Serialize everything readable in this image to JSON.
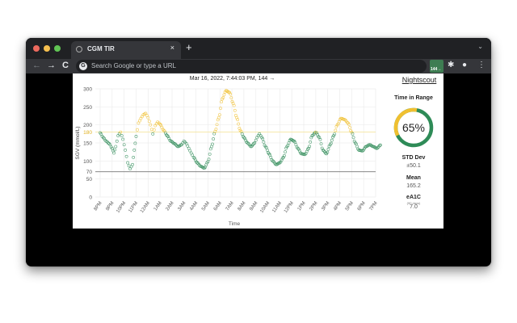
{
  "browser": {
    "tab": {
      "title": "CGM TIR",
      "close_icon": "×"
    },
    "new_tab_icon": "+",
    "tabstrip_chevron": "⌄",
    "nav": {
      "back": "←",
      "forward": "→",
      "reload": "C"
    },
    "omnibox": {
      "google_icon": "G",
      "placeholder": "Search Google or type a URL"
    },
    "extension_badge": "144→",
    "icons": {
      "extensions": "✱",
      "profile": "●",
      "menu": "⋮"
    },
    "traffic_lights": {
      "close": "#ed6a5e",
      "minimize": "#f5bf4f",
      "maximize": "#61c554"
    }
  },
  "page": {
    "chart_title": "Mar 16, 2022, 7:44:03 PM, 144 →",
    "sidebar": {
      "brand": "Nightscout",
      "tir_label": "Time in Range",
      "tir_value": "65%",
      "std_label": "STD Dev",
      "std_value": "±50.1",
      "mean_label": "Mean",
      "mean_value": "165.2",
      "ea1c_label": "eA1C",
      "ea1c_sub": "(90 days)",
      "ea1c_value": "7.0"
    },
    "colors": {
      "in_range": "#2e8b57",
      "high": "#f0c030",
      "target_line": "#f5e6a0",
      "low_line": "#777777"
    }
  },
  "chart_data": {
    "type": "scatter",
    "title": "Mar 16, 2022, 7:44:03 PM, 144 →",
    "xlabel": "Time",
    "ylabel": "SGV (mmol/L)",
    "ylim": [
      0,
      300
    ],
    "yticks": [
      "0",
      "50",
      "70",
      "100",
      "150",
      "180",
      "200",
      "250",
      "300"
    ],
    "xticks": [
      "8PM",
      "9PM",
      "10PM",
      "11PM",
      "12AM",
      "1AM",
      "2AM",
      "3AM",
      "4AM",
      "5AM",
      "6AM",
      "7AM",
      "8AM",
      "9AM",
      "10AM",
      "11AM",
      "12PM",
      "1PM",
      "2PM",
      "3PM",
      "4PM",
      "5PM",
      "6PM",
      "7PM"
    ],
    "reference_lines": {
      "high": 180,
      "low": 70
    },
    "grid": true,
    "series": [
      {
        "name": "SGV",
        "x_hours": [
          0,
          0.25,
          0.5,
          0.75,
          1.0,
          1.15,
          1.3,
          1.5,
          1.7,
          1.9,
          2.1,
          2.3,
          2.5,
          2.7,
          2.85,
          3.0,
          3.2,
          3.4,
          3.6,
          3.8,
          4.0,
          4.2,
          4.4,
          4.6,
          4.8,
          5.0,
          5.3,
          5.6,
          5.9,
          6.2,
          6.5,
          6.8,
          7.0,
          7.2,
          7.4,
          7.6,
          7.8,
          8.1,
          8.4,
          8.7,
          9.0,
          9.3,
          9.6,
          9.9,
          10.2,
          10.5,
          10.8,
          11.1,
          11.4,
          11.7,
          12.0,
          12.3,
          12.6,
          12.9,
          13.1,
          13.3,
          13.5,
          13.8,
          14.1,
          14.4,
          14.7,
          15.0,
          15.3,
          15.6,
          15.9,
          16.2,
          16.5,
          16.8,
          17.1,
          17.4,
          17.7,
          18.0,
          18.3,
          18.6,
          18.9,
          19.2,
          19.5,
          19.8,
          20.1,
          20.4,
          20.7,
          21.0,
          21.3,
          21.6,
          21.9,
          22.2,
          22.5,
          22.8,
          23.1,
          23.4
        ],
        "values": [
          178,
          165,
          155,
          148,
          135,
          122,
          140,
          170,
          180,
          160,
          130,
          95,
          78,
          90,
          130,
          168,
          205,
          218,
          228,
          232,
          220,
          200,
          175,
          198,
          208,
          202,
          185,
          170,
          155,
          148,
          140,
          145,
          155,
          148,
          135,
          122,
          110,
          95,
          85,
          80,
          98,
          140,
          182,
          220,
          272,
          295,
          290,
          260,
          220,
          185,
          165,
          150,
          140,
          150,
          165,
          175,
          165,
          140,
          120,
          100,
          90,
          95,
          110,
          140,
          160,
          155,
          135,
          120,
          118,
          135,
          170,
          180,
          165,
          130,
          120,
          145,
          170,
          200,
          218,
          215,
          205,
          180,
          150,
          130,
          128,
          140,
          145,
          140,
          135,
          144
        ]
      }
    ]
  }
}
